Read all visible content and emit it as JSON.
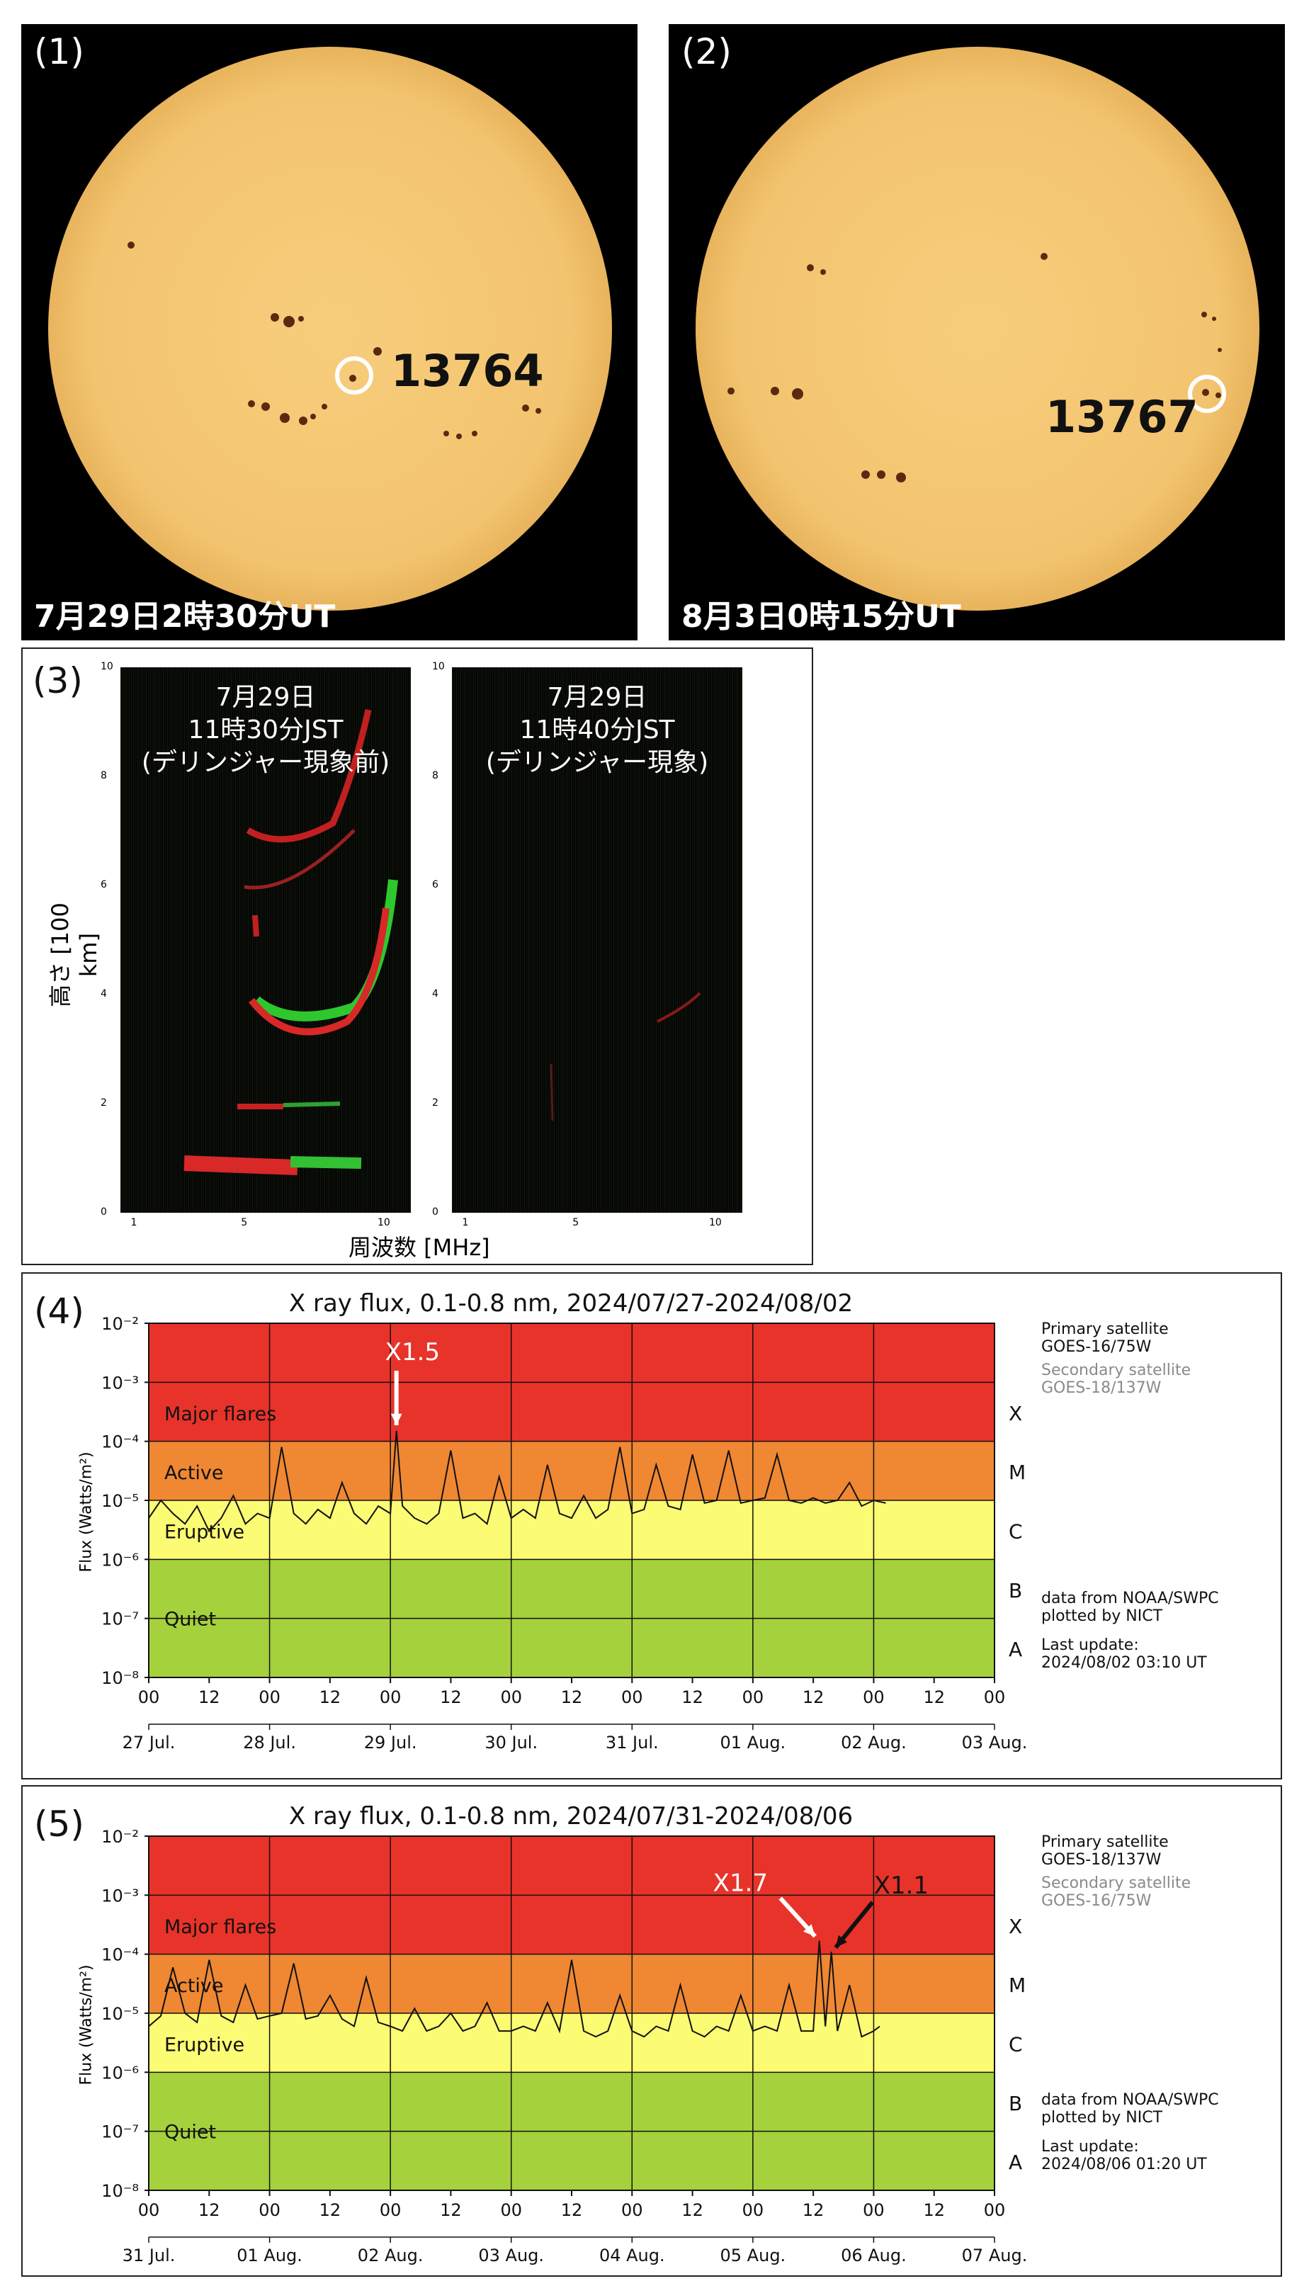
{
  "panel1": {
    "label": "(1)",
    "timestamp": "7月29日2時30分UT",
    "region": "13764"
  },
  "panel2": {
    "label": "(2)",
    "timestamp": "8月3日0時15分UT",
    "region": "13767"
  },
  "panel3": {
    "label": "(3)",
    "ylabel": "高さ [100 km]",
    "xlabel": "周波数 [MHz]",
    "left": {
      "line1": "7月29日",
      "line2": "11時30分JST",
      "line3": "(デリンジャー現象前)"
    },
    "right": {
      "line1": "7月29日",
      "line2": "11時40分JST",
      "line3": "(デリンジャー現象)"
    },
    "yticks": [
      "10",
      "8",
      "6",
      "4",
      "2",
      "0"
    ],
    "xticks": [
      "1",
      "5",
      "10"
    ]
  },
  "panel4": {
    "label": "(4)",
    "title": "X ray flux, 0.1-0.8 nm, 2024/07/27-2024/08/02",
    "primary_label": "Primary satellite",
    "primary_sat": "GOES-16/75W",
    "secondary_label": "Secondary satellite",
    "secondary_sat": "GOES-18/137W",
    "source1": "data from NOAA/SWPC",
    "source2": "plotted by NICT",
    "update_label": "Last update:",
    "update_value": "2024/08/02 03:10 UT",
    "day_labels": [
      "27 Jul.",
      "28 Jul.",
      "29 Jul.",
      "30 Jul.",
      "31 Jul.",
      "01 Aug.",
      "02 Aug.",
      "03 Aug."
    ],
    "annotation": "X1.5"
  },
  "panel5": {
    "label": "(5)",
    "title": "X ray flux, 0.1-0.8 nm, 2024/07/31-2024/08/06",
    "primary_label": "Primary satellite",
    "primary_sat": "GOES-18/137W",
    "secondary_label": "Secondary satellite",
    "secondary_sat": "GOES-16/75W",
    "source1": "data from NOAA/SWPC",
    "source2": "plotted by NICT",
    "update_label": "Last update:",
    "update_value": "2024/08/06 01:20 UT",
    "day_labels": [
      "31 Jul.",
      "01 Aug.",
      "02 Aug.",
      "03 Aug.",
      "04 Aug.",
      "05 Aug.",
      "06 Aug.",
      "07 Aug."
    ],
    "annotation_a": "X1.7",
    "annotation_b": "X1.1"
  },
  "xray_common": {
    "ylabel": "Flux (Watts/m²)",
    "yticks": [
      "10⁻²",
      "10⁻³",
      "10⁻⁴",
      "10⁻⁵",
      "10⁻⁶",
      "10⁻⁷",
      "10⁻⁸"
    ],
    "hour_labels": [
      "00",
      "12"
    ],
    "classes": [
      "X",
      "M",
      "C",
      "B",
      "A"
    ],
    "zones": [
      "Major flares",
      "Active",
      "Eruptive",
      "Quiet"
    ],
    "colors": {
      "major": "#e8332a",
      "active": "#ef8733",
      "eruptive": "#fbfb74",
      "quiet": "#a5d13c"
    }
  },
  "chart_data": [
    {
      "type": "line",
      "title": "X ray flux, 0.1-0.8 nm, 2024/07/27-2024/08/02",
      "ylabel": "Flux (Watts/m²)",
      "yscale": "log",
      "ylim": [
        1e-08,
        0.01
      ],
      "x_unit": "days since 27 Jul. 00 UT",
      "xlim": [
        0,
        7
      ],
      "series": [
        {
          "name": "GOES-16/75W",
          "x": [
            0.0,
            0.1,
            0.2,
            0.3,
            0.4,
            0.5,
            0.6,
            0.7,
            0.8,
            0.9,
            1.0,
            1.1,
            1.2,
            1.3,
            1.4,
            1.5,
            1.6,
            1.7,
            1.8,
            1.9,
            2.0,
            2.05,
            2.1,
            2.2,
            2.3,
            2.4,
            2.5,
            2.6,
            2.7,
            2.8,
            2.9,
            3.0,
            3.1,
            3.2,
            3.3,
            3.4,
            3.5,
            3.6,
            3.7,
            3.8,
            3.9,
            4.0,
            4.1,
            4.2,
            4.3,
            4.4,
            4.5,
            4.6,
            4.7,
            4.8,
            4.9,
            5.0,
            5.1,
            5.2,
            5.3,
            5.4,
            5.5,
            5.6,
            5.7,
            5.8,
            5.9,
            6.0,
            6.1
          ],
          "y": [
            5e-06,
            1e-05,
            6e-06,
            4e-06,
            8e-06,
            3e-06,
            5e-06,
            1.2e-05,
            4e-06,
            6e-06,
            5e-06,
            8e-05,
            6e-06,
            4e-06,
            7e-06,
            5e-06,
            2e-05,
            6e-06,
            4e-06,
            8e-06,
            6e-06,
            0.00015,
            8e-06,
            5e-06,
            4e-06,
            6e-06,
            7e-05,
            5e-06,
            6e-06,
            4e-06,
            2.5e-05,
            5e-06,
            7e-06,
            5e-06,
            4e-05,
            6e-06,
            5e-06,
            1.2e-05,
            5e-06,
            7e-06,
            8e-05,
            6e-06,
            7e-06,
            4e-05,
            8e-06,
            7e-06,
            6e-05,
            9e-06,
            1e-05,
            7e-05,
            9e-06,
            1e-05,
            1.1e-05,
            6e-05,
            1e-05,
            9e-06,
            1.1e-05,
            9e-06,
            1e-05,
            2e-05,
            8e-06,
            1e-05,
            9e-06
          ]
        }
      ],
      "annotations": [
        {
          "text": "X1.5",
          "x": 2.05,
          "y": 0.00015
        }
      ]
    },
    {
      "type": "line",
      "title": "X ray flux, 0.1-0.8 nm, 2024/07/31-2024/08/06",
      "ylabel": "Flux (Watts/m²)",
      "yscale": "log",
      "ylim": [
        1e-08,
        0.01
      ],
      "x_unit": "days since 31 Jul. 00 UT",
      "xlim": [
        0,
        7
      ],
      "series": [
        {
          "name": "GOES-18/137W",
          "x": [
            0.0,
            0.1,
            0.2,
            0.3,
            0.4,
            0.5,
            0.6,
            0.7,
            0.8,
            0.9,
            1.0,
            1.1,
            1.2,
            1.3,
            1.4,
            1.5,
            1.6,
            1.7,
            1.8,
            1.9,
            2.0,
            2.1,
            2.2,
            2.3,
            2.4,
            2.5,
            2.6,
            2.7,
            2.8,
            2.9,
            3.0,
            3.1,
            3.2,
            3.3,
            3.4,
            3.5,
            3.6,
            3.7,
            3.8,
            3.9,
            4.0,
            4.1,
            4.2,
            4.3,
            4.4,
            4.5,
            4.6,
            4.7,
            4.8,
            4.9,
            5.0,
            5.1,
            5.2,
            5.3,
            5.4,
            5.5,
            5.55,
            5.6,
            5.65,
            5.7,
            5.8,
            5.9,
            6.0,
            6.05
          ],
          "y": [
            6e-06,
            9e-06,
            6e-05,
            1e-05,
            7e-06,
            8e-05,
            9e-06,
            7e-06,
            3e-05,
            8e-06,
            9e-06,
            1e-05,
            7e-05,
            8e-06,
            9e-06,
            2e-05,
            8e-06,
            6e-06,
            4e-05,
            7e-06,
            6e-06,
            5e-06,
            1.2e-05,
            5e-06,
            6e-06,
            1e-05,
            5e-06,
            6e-06,
            1.5e-05,
            5e-06,
            5e-06,
            6e-06,
            5e-06,
            1.5e-05,
            5e-06,
            8e-05,
            5e-06,
            4e-06,
            5e-06,
            2e-05,
            5e-06,
            4e-06,
            6e-06,
            5e-06,
            3e-05,
            5e-06,
            4e-06,
            6e-06,
            5e-06,
            2e-05,
            5e-06,
            6e-06,
            5e-06,
            3e-05,
            5e-06,
            5e-06,
            0.00017,
            6e-06,
            0.00011,
            5e-06,
            3e-05,
            4e-06,
            5e-06,
            6e-06
          ]
        }
      ],
      "annotations": [
        {
          "text": "X1.7",
          "x": 5.55,
          "y": 0.00017
        },
        {
          "text": "X1.1",
          "x": 5.65,
          "y": 0.00011
        }
      ]
    }
  ]
}
